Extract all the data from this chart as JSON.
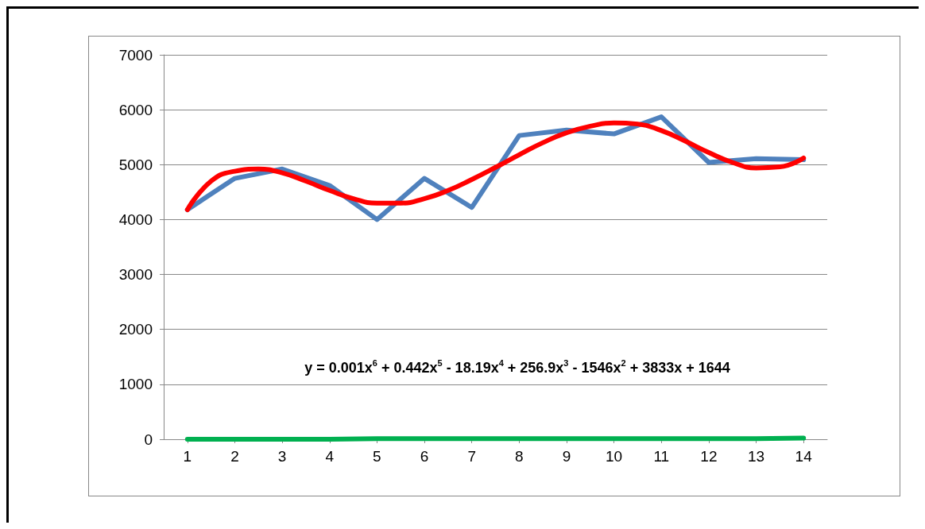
{
  "chart_data": {
    "type": "line",
    "x": [
      1,
      2,
      3,
      4,
      5,
      6,
      7,
      8,
      9,
      10,
      11,
      12,
      13,
      14
    ],
    "xlim": [
      0.5,
      14.5
    ],
    "xticks": [
      1,
      2,
      3,
      4,
      5,
      6,
      7,
      8,
      9,
      10,
      11,
      12,
      13,
      14
    ],
    "ylim": [
      0,
      7000
    ],
    "yticks": [
      0,
      1000,
      2000,
      3000,
      4000,
      5000,
      6000,
      7000
    ],
    "grid": "y",
    "marker": "none",
    "line_style": "solid",
    "series": [
      {
        "color": "#4f81bd",
        "values": [
          4180,
          4750,
          4920,
          4620,
          4000,
          4750,
          4220,
          5530,
          5630,
          5560,
          5870,
          5040,
          5110,
          5090
        ]
      },
      {
        "color": "#00b050",
        "values": [
          0,
          0,
          0,
          0,
          10,
          10,
          10,
          10,
          10,
          10,
          10,
          10,
          10,
          20
        ]
      },
      {
        "color": "#ff0000",
        "x": [
          1,
          1.5,
          2,
          2.5,
          3,
          3.5,
          4,
          4.5,
          5,
          5.5,
          6,
          6.5,
          7,
          7.5,
          8,
          8.5,
          9,
          9.5,
          10,
          10.5,
          11,
          11.5,
          12,
          12.5,
          13,
          13.5,
          14
        ],
        "values": [
          4180,
          4700,
          4880,
          4920,
          4850,
          4700,
          4530,
          4380,
          4300,
          4300,
          4380,
          4530,
          4730,
          4950,
          5180,
          5400,
          5580,
          5700,
          5760,
          5740,
          5620,
          5430,
          5220,
          5040,
          4940,
          4960,
          5120
        ]
      }
    ],
    "annotations": [
      "y = 0.001x$^{6}$ + 0.442x$^{5}$ - 18.19x$^{4}$ + 256.9x$^{3}$ - 1546x$^{2}$ + 3833x + 1644"
    ]
  }
}
